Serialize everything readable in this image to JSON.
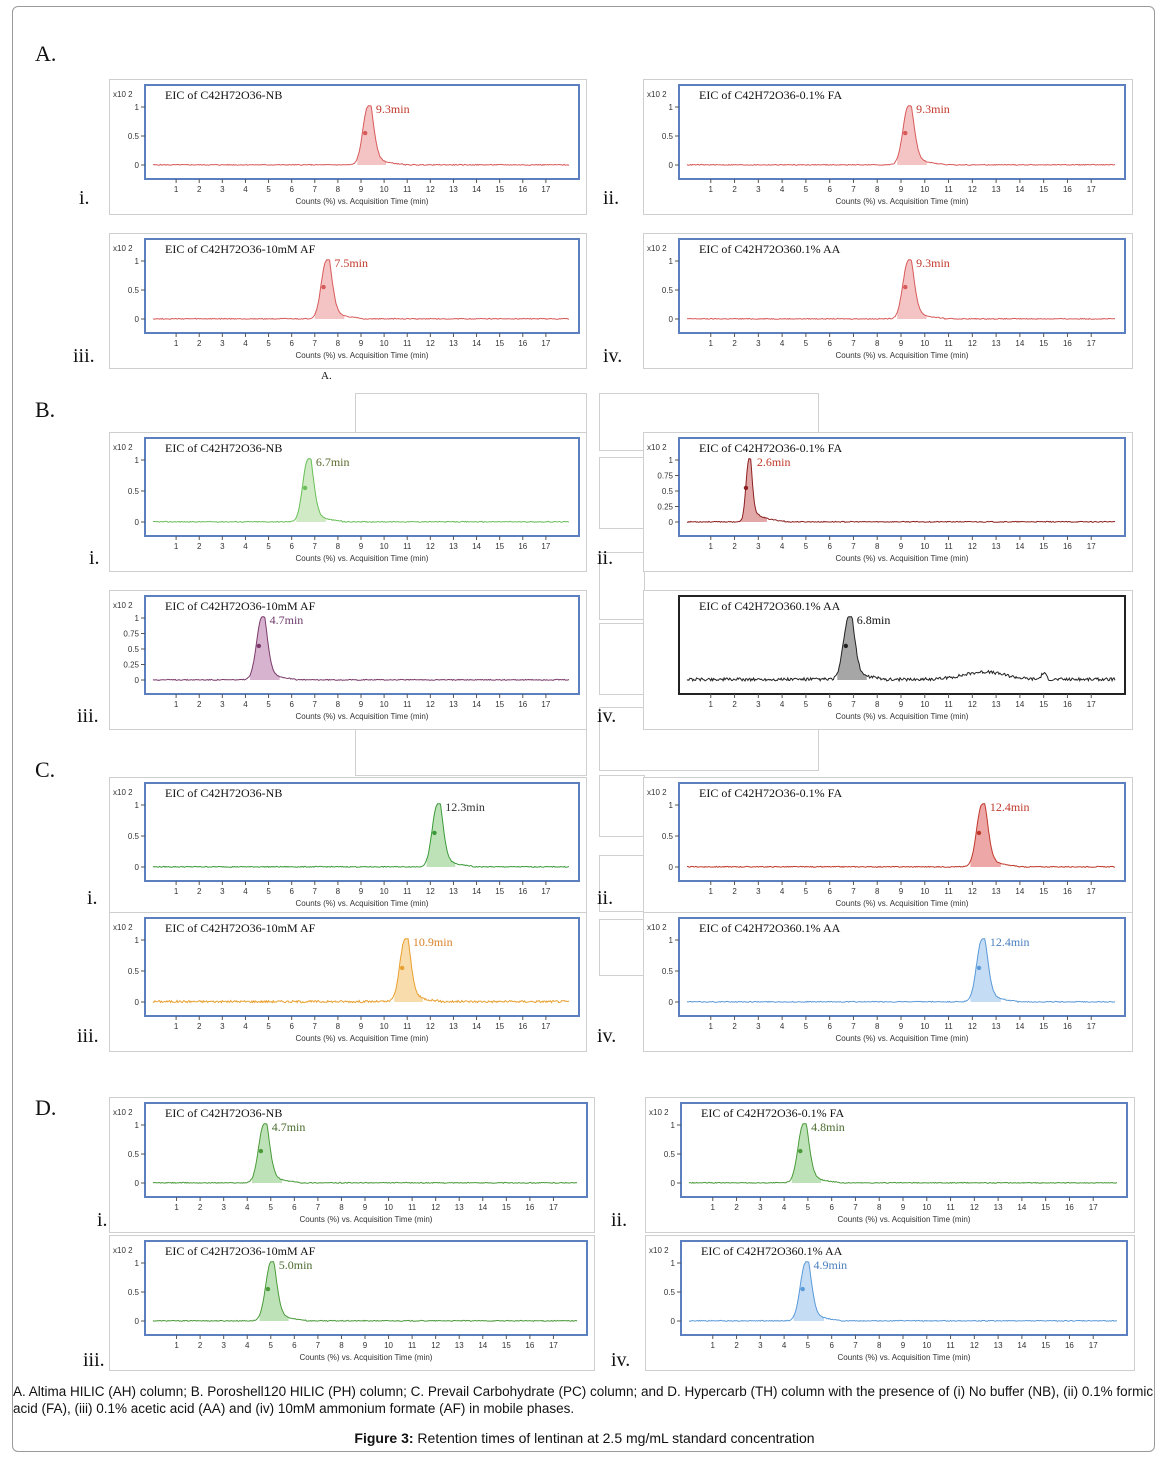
{
  "sections": [
    {
      "label": "A.",
      "sublabel": "A.",
      "panels": [
        {
          "roman": "i.",
          "title": "EIC of C42H72O36-NB",
          "rt": 9.3,
          "rt_label": "9.3min",
          "label_color": "#c0392b",
          "color": "#d85a5a",
          "fill": "#f0b0b0",
          "border": "#5b7fbf",
          "ymult": "x10 2",
          "yticks": [
            "1",
            "0.5",
            "0"
          ],
          "xlabel": "Counts (%) vs. Acquisition Time (min)"
        },
        {
          "roman": "ii.",
          "title": "EIC of C42H72O36-0.1% FA",
          "rt": 9.3,
          "rt_label": "9.3min",
          "label_color": "#c0392b",
          "color": "#d85a5a",
          "fill": "#f0b0b0",
          "border": "#5b7fbf",
          "ymult": "x10 2",
          "yticks": [
            "1",
            "0.5",
            "0"
          ],
          "xlabel": "Counts (%) vs. Acquisition Time (min)"
        },
        {
          "roman": "iii.",
          "title": "EIC of C42H72O36-10mM AF",
          "rt": 7.5,
          "rt_label": "7.5min",
          "label_color": "#c0392b",
          "color": "#d85a5a",
          "fill": "#f0b0b0",
          "border": "#5b7fbf",
          "ymult": "x10 2",
          "yticks": [
            "1",
            "0.5",
            "0"
          ],
          "xlabel": "Counts (%) vs. Acquisition Time (min)"
        },
        {
          "roman": "iv.",
          "title": "EIC of C42H72O360.1% AA",
          "rt": 9.3,
          "rt_label": "9.3min",
          "label_color": "#c0392b",
          "color": "#d85a5a",
          "fill": "#f0b0b0",
          "border": "#5b7fbf",
          "ymult": "x10 2",
          "yticks": [
            "1",
            "0.5",
            "0"
          ],
          "xlabel": "Counts (%) vs. Acquisition Time (min)"
        }
      ]
    },
    {
      "label": "B.",
      "panels": [
        {
          "roman": "i.",
          "title": "EIC of C42H72O36-NB",
          "rt": 6.7,
          "rt_label": "6.7min",
          "label_color": "#5a6b2e",
          "color": "#6abf5a",
          "fill": "#bfe3b2",
          "border": "#5b7fbf",
          "ymult": "x10 2",
          "yticks": [
            "1",
            "0.5",
            "0"
          ],
          "xlabel": "Counts (%) vs. Acquisition Time (min)"
        },
        {
          "roman": "ii.",
          "title": "EIC of C42H72O36-0.1% FA",
          "rt": 2.6,
          "rt_label": "2.6min",
          "label_color": "#c0392b",
          "color": "#8b2020",
          "fill": "#d88a8a",
          "border": "#5b7fbf",
          "ymult": "x10 2",
          "yticks": [
            "1",
            "0.75",
            "0.5",
            "0.25",
            "0"
          ],
          "xlabel": "Counts (%) vs. Acquisition Time (min)"
        },
        {
          "roman": "iii.",
          "title": "EIC of C42H72O36-10mM AF",
          "rt": 4.7,
          "rt_label": "4.7min",
          "label_color": "#6b3a6b",
          "color": "#7a3a6a",
          "fill": "#c99ac0",
          "border": "#5b7fbf",
          "ymult": "x10 2",
          "yticks": [
            "1",
            "0.75",
            "0.5",
            "0.25",
            "0"
          ],
          "xlabel": "Counts (%) vs. Acquisition Time (min)"
        },
        {
          "roman": "iv.",
          "title": "EIC of C42H72O360.1% AA",
          "rt": 6.8,
          "rt_label": "6.8min",
          "label_color": "#111111",
          "color": "#222222",
          "fill": "#888888",
          "border": "#222222",
          "ymult": "",
          "yticks": [],
          "xlabel": "Counts (%) vs. Acquisition Time (min)"
        }
      ]
    },
    {
      "label": "C.",
      "panels": [
        {
          "roman": "i.",
          "title": "EIC of C42H72O36-NB",
          "rt": 12.3,
          "rt_label": "12.3min",
          "label_color": "#333333",
          "color": "#3a9a3a",
          "fill": "#a8d8a0",
          "border": "#5b7fbf",
          "ymult": "x10 2",
          "yticks": [
            "1",
            "0.5",
            "0"
          ],
          "xlabel": "Counts (%) vs. Acquisition Time (min)"
        },
        {
          "roman": "ii.",
          "title": "EIC of C42H72O36-0.1% FA",
          "rt": 12.4,
          "rt_label": "12.4min",
          "label_color": "#c0392b",
          "color": "#c0392b",
          "fill": "#e88a8a",
          "border": "#5b7fbf",
          "ymult": "x10 2",
          "yticks": [
            "1",
            "0.5",
            "0"
          ],
          "xlabel": "Counts (%) vs. Acquisition Time (min)"
        },
        {
          "roman": "iii.",
          "title": "EIC of C42H72O36-10mM AF",
          "rt": 10.9,
          "rt_label": "10.9min",
          "label_color": "#d9822b",
          "color": "#e8a030",
          "fill": "#f5d090",
          "border": "#5b7fbf",
          "ymult": "x10 2",
          "yticks": [
            "1",
            "0.5",
            "0"
          ],
          "xlabel": "Counts (%) vs. Acquisition Time (min)"
        },
        {
          "roman": "iv.",
          "title": "EIC of C42H72O360.1% AA",
          "rt": 12.4,
          "rt_label": "12.4min",
          "label_color": "#4a7fbf",
          "color": "#5a9ad8",
          "fill": "#b0d0f0",
          "border": "#5b7fbf",
          "ymult": "x10 2",
          "yticks": [
            "1",
            "0.5",
            "0"
          ],
          "xlabel": "Counts (%) vs. Acquisition Time (min)"
        }
      ]
    },
    {
      "label": "D.",
      "panels": [
        {
          "roman": "i.",
          "title": "EIC of C42H72O36-NB",
          "rt": 4.7,
          "rt_label": "4.7min",
          "label_color": "#4a6b2e",
          "color": "#4a9a3a",
          "fill": "#a8d8a0",
          "border": "#5b7fbf",
          "ymult": "x10 2",
          "yticks": [
            "1",
            "0.5",
            "0"
          ],
          "xlabel": "Counts (%) vs. Acquisition Time (min)"
        },
        {
          "roman": "ii.",
          "title": "EIC of C42H72O36-0.1% FA",
          "rt": 4.8,
          "rt_label": "4.8min",
          "label_color": "#4a6b2e",
          "color": "#4a9a3a",
          "fill": "#a8d8a0",
          "border": "#5b7fbf",
          "ymult": "x10 2",
          "yticks": [
            "1",
            "0.5",
            "0"
          ],
          "xlabel": "Counts (%) vs. Acquisition Time (min)"
        },
        {
          "roman": "iii.",
          "title": "EIC of C42H72O36-10mM AF",
          "rt": 5.0,
          "rt_label": "5.0min",
          "label_color": "#4a6b2e",
          "color": "#4a9a3a",
          "fill": "#a8d8a0",
          "border": "#5b7fbf",
          "ymult": "x10 2",
          "yticks": [
            "1",
            "0.5",
            "0"
          ],
          "xlabel": "Counts (%) vs. Acquisition Time (min)"
        },
        {
          "roman": "iv.",
          "title": "EIC of C42H72O360.1% AA",
          "rt": 4.9,
          "rt_label": "4.9min",
          "label_color": "#4a7fbf",
          "color": "#5a9ad8",
          "fill": "#b0d0f0",
          "border": "#5b7fbf",
          "ymult": "x10 2",
          "yticks": [
            "1",
            "0.5",
            "0"
          ],
          "xlabel": "Counts (%) vs. Acquisition Time (min)"
        }
      ]
    }
  ],
  "xticks": [
    "1",
    "2",
    "3",
    "4",
    "5",
    "6",
    "7",
    "8",
    "9",
    "10",
    "11",
    "12",
    "13",
    "14",
    "15",
    "16",
    "17"
  ],
  "caption": {
    "text": "A. Altima HILIC (AH) column; B. Poroshell120 HILIC (PH) column; C. Prevail Carbohydrate (PC) column; and D. Hypercarb (TH) column with the presence of (i) No buffer (NB), (ii) 0.1% formic acid (FA), (iii) 0.1% acetic acid (AA) and (iv) 10mM ammonium formate (AF) in mobile phases.",
    "figure_label": "Figure 3:",
    "figure_title": "Retention times of lentinan at 2.5 mg/mL standard concentration"
  },
  "chart_data": [
    {
      "type": "line",
      "title": "EIC of C42H72O36-NB",
      "section": "A",
      "xlabel": "Counts (%) vs. Acquisition Time (min)",
      "xlim": [
        0,
        18
      ],
      "ylim": [
        0,
        1
      ],
      "peak_rt_min": 9.3
    },
    {
      "type": "line",
      "title": "EIC of C42H72O36-0.1% FA",
      "section": "A",
      "xlabel": "Counts (%) vs. Acquisition Time (min)",
      "xlim": [
        0,
        18
      ],
      "ylim": [
        0,
        1
      ],
      "peak_rt_min": 9.3
    },
    {
      "type": "line",
      "title": "EIC of C42H72O36-10mM AF",
      "section": "A",
      "xlabel": "Counts (%) vs. Acquisition Time (min)",
      "xlim": [
        0,
        18
      ],
      "ylim": [
        0,
        1
      ],
      "peak_rt_min": 7.5
    },
    {
      "type": "line",
      "title": "EIC of C42H72O360.1% AA",
      "section": "A",
      "xlabel": "Counts (%) vs. Acquisition Time (min)",
      "xlim": [
        0,
        18
      ],
      "ylim": [
        0,
        1
      ],
      "peak_rt_min": 9.3
    },
    {
      "type": "line",
      "title": "EIC of C42H72O36-NB",
      "section": "B",
      "xlabel": "Counts (%) vs. Acquisition Time (min)",
      "xlim": [
        0,
        18
      ],
      "ylim": [
        0,
        1
      ],
      "peak_rt_min": 6.7
    },
    {
      "type": "line",
      "title": "EIC of C42H72O36-0.1% FA",
      "section": "B",
      "xlabel": "Counts (%) vs. Acquisition Time (min)",
      "xlim": [
        0,
        18
      ],
      "ylim": [
        0,
        1
      ],
      "peak_rt_min": 2.6
    },
    {
      "type": "line",
      "title": "EIC of C42H72O36-10mM AF",
      "section": "B",
      "xlabel": "Counts (%) vs. Acquisition Time (min)",
      "xlim": [
        0,
        18
      ],
      "ylim": [
        0,
        1
      ],
      "peak_rt_min": 4.7
    },
    {
      "type": "line",
      "title": "EIC of C42H72O360.1% AA",
      "section": "B",
      "xlabel": "Counts (%) vs. Acquisition Time (min)",
      "xlim": [
        0,
        18
      ],
      "ylim": [
        0,
        1
      ],
      "peak_rt_min": 6.8
    },
    {
      "type": "line",
      "title": "EIC of C42H72O36-NB",
      "section": "C",
      "xlabel": "Counts (%) vs. Acquisition Time (min)",
      "xlim": [
        0,
        18
      ],
      "ylim": [
        0,
        1
      ],
      "peak_rt_min": 12.3
    },
    {
      "type": "line",
      "title": "EIC of C42H72O36-0.1% FA",
      "section": "C",
      "xlabel": "Counts (%) vs. Acquisition Time (min)",
      "xlim": [
        0,
        18
      ],
      "ylim": [
        0,
        1
      ],
      "peak_rt_min": 12.4
    },
    {
      "type": "line",
      "title": "EIC of C42H72O36-10mM AF",
      "section": "C",
      "xlabel": "Counts (%) vs. Acquisition Time (min)",
      "xlim": [
        0,
        18
      ],
      "ylim": [
        0,
        1
      ],
      "peak_rt_min": 10.9
    },
    {
      "type": "line",
      "title": "EIC of C42H72O360.1% AA",
      "section": "C",
      "xlabel": "Counts (%) vs. Acquisition Time (min)",
      "xlim": [
        0,
        18
      ],
      "ylim": [
        0,
        1
      ],
      "peak_rt_min": 12.4
    },
    {
      "type": "line",
      "title": "EIC of C42H72O36-NB",
      "section": "D",
      "xlabel": "Counts (%) vs. Acquisition Time (min)",
      "xlim": [
        0,
        18
      ],
      "ylim": [
        0,
        1
      ],
      "peak_rt_min": 4.7
    },
    {
      "type": "line",
      "title": "EIC of C42H72O36-0.1% FA",
      "section": "D",
      "xlabel": "Counts (%) vs. Acquisition Time (min)",
      "xlim": [
        0,
        18
      ],
      "ylim": [
        0,
        1
      ],
      "peak_rt_min": 4.8
    },
    {
      "type": "line",
      "title": "EIC of C42H72O36-10mM AF",
      "section": "D",
      "xlabel": "Counts (%) vs. Acquisition Time (min)",
      "xlim": [
        0,
        18
      ],
      "ylim": [
        0,
        1
      ],
      "peak_rt_min": 5.0
    },
    {
      "type": "line",
      "title": "EIC of C42H72O360.1% AA",
      "section": "D",
      "xlabel": "Counts (%) vs. Acquisition Time (min)",
      "xlim": [
        0,
        18
      ],
      "ylim": [
        0,
        1
      ],
      "peak_rt_min": 4.9
    }
  ]
}
